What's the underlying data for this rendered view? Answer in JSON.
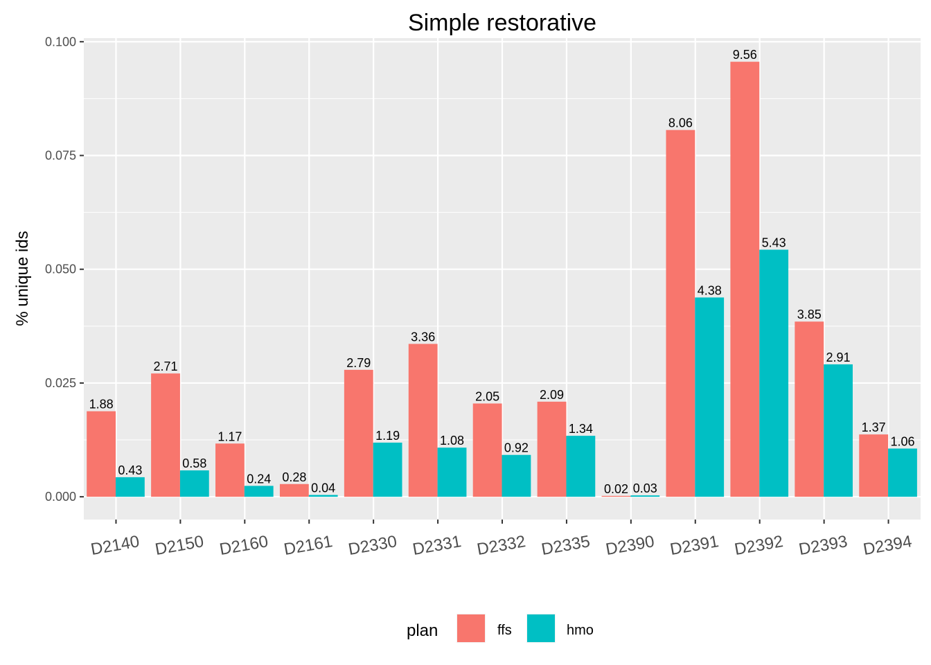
{
  "chart_data": {
    "type": "bar",
    "title": "Simple restorative",
    "xlabel": "",
    "ylabel": "% unique ids",
    "ylim": [
      -0.005,
      0.1008
    ],
    "yticks": [
      0.0,
      0.025,
      0.05,
      0.075,
      0.1
    ],
    "ytick_labels": [
      "0.000",
      "0.025",
      "0.050",
      "0.075",
      "0.100"
    ],
    "grid": true,
    "legend": {
      "title": "plan",
      "placement": "bottom"
    },
    "categories": [
      "D2140",
      "D2150",
      "D2160",
      "D2161",
      "D2330",
      "D2331",
      "D2332",
      "D2335",
      "D2390",
      "D2391",
      "D2392",
      "D2393",
      "D2394"
    ],
    "series": [
      {
        "name": "ffs",
        "color": "#F8766D",
        "values": [
          0.0188,
          0.0271,
          0.0117,
          0.0028,
          0.0279,
          0.0336,
          0.0205,
          0.0209,
          0.0002,
          0.0806,
          0.0956,
          0.0385,
          0.0137
        ],
        "labels": [
          "1.88",
          "2.71",
          "1.17",
          "0.28",
          "2.79",
          "3.36",
          "2.05",
          "2.09",
          "0.02",
          "8.06",
          "9.56",
          "3.85",
          "1.37"
        ]
      },
      {
        "name": "hmo",
        "color": "#00BFC4",
        "values": [
          0.0043,
          0.0058,
          0.0024,
          0.0004,
          0.0119,
          0.0108,
          0.0092,
          0.0134,
          0.0003,
          0.0438,
          0.0543,
          0.0291,
          0.0106
        ],
        "labels": [
          "0.43",
          "0.58",
          "0.24",
          "0.04",
          "1.19",
          "1.08",
          "0.92",
          "1.34",
          "0.03",
          "4.38",
          "5.43",
          "2.91",
          "1.06"
        ]
      }
    ]
  }
}
